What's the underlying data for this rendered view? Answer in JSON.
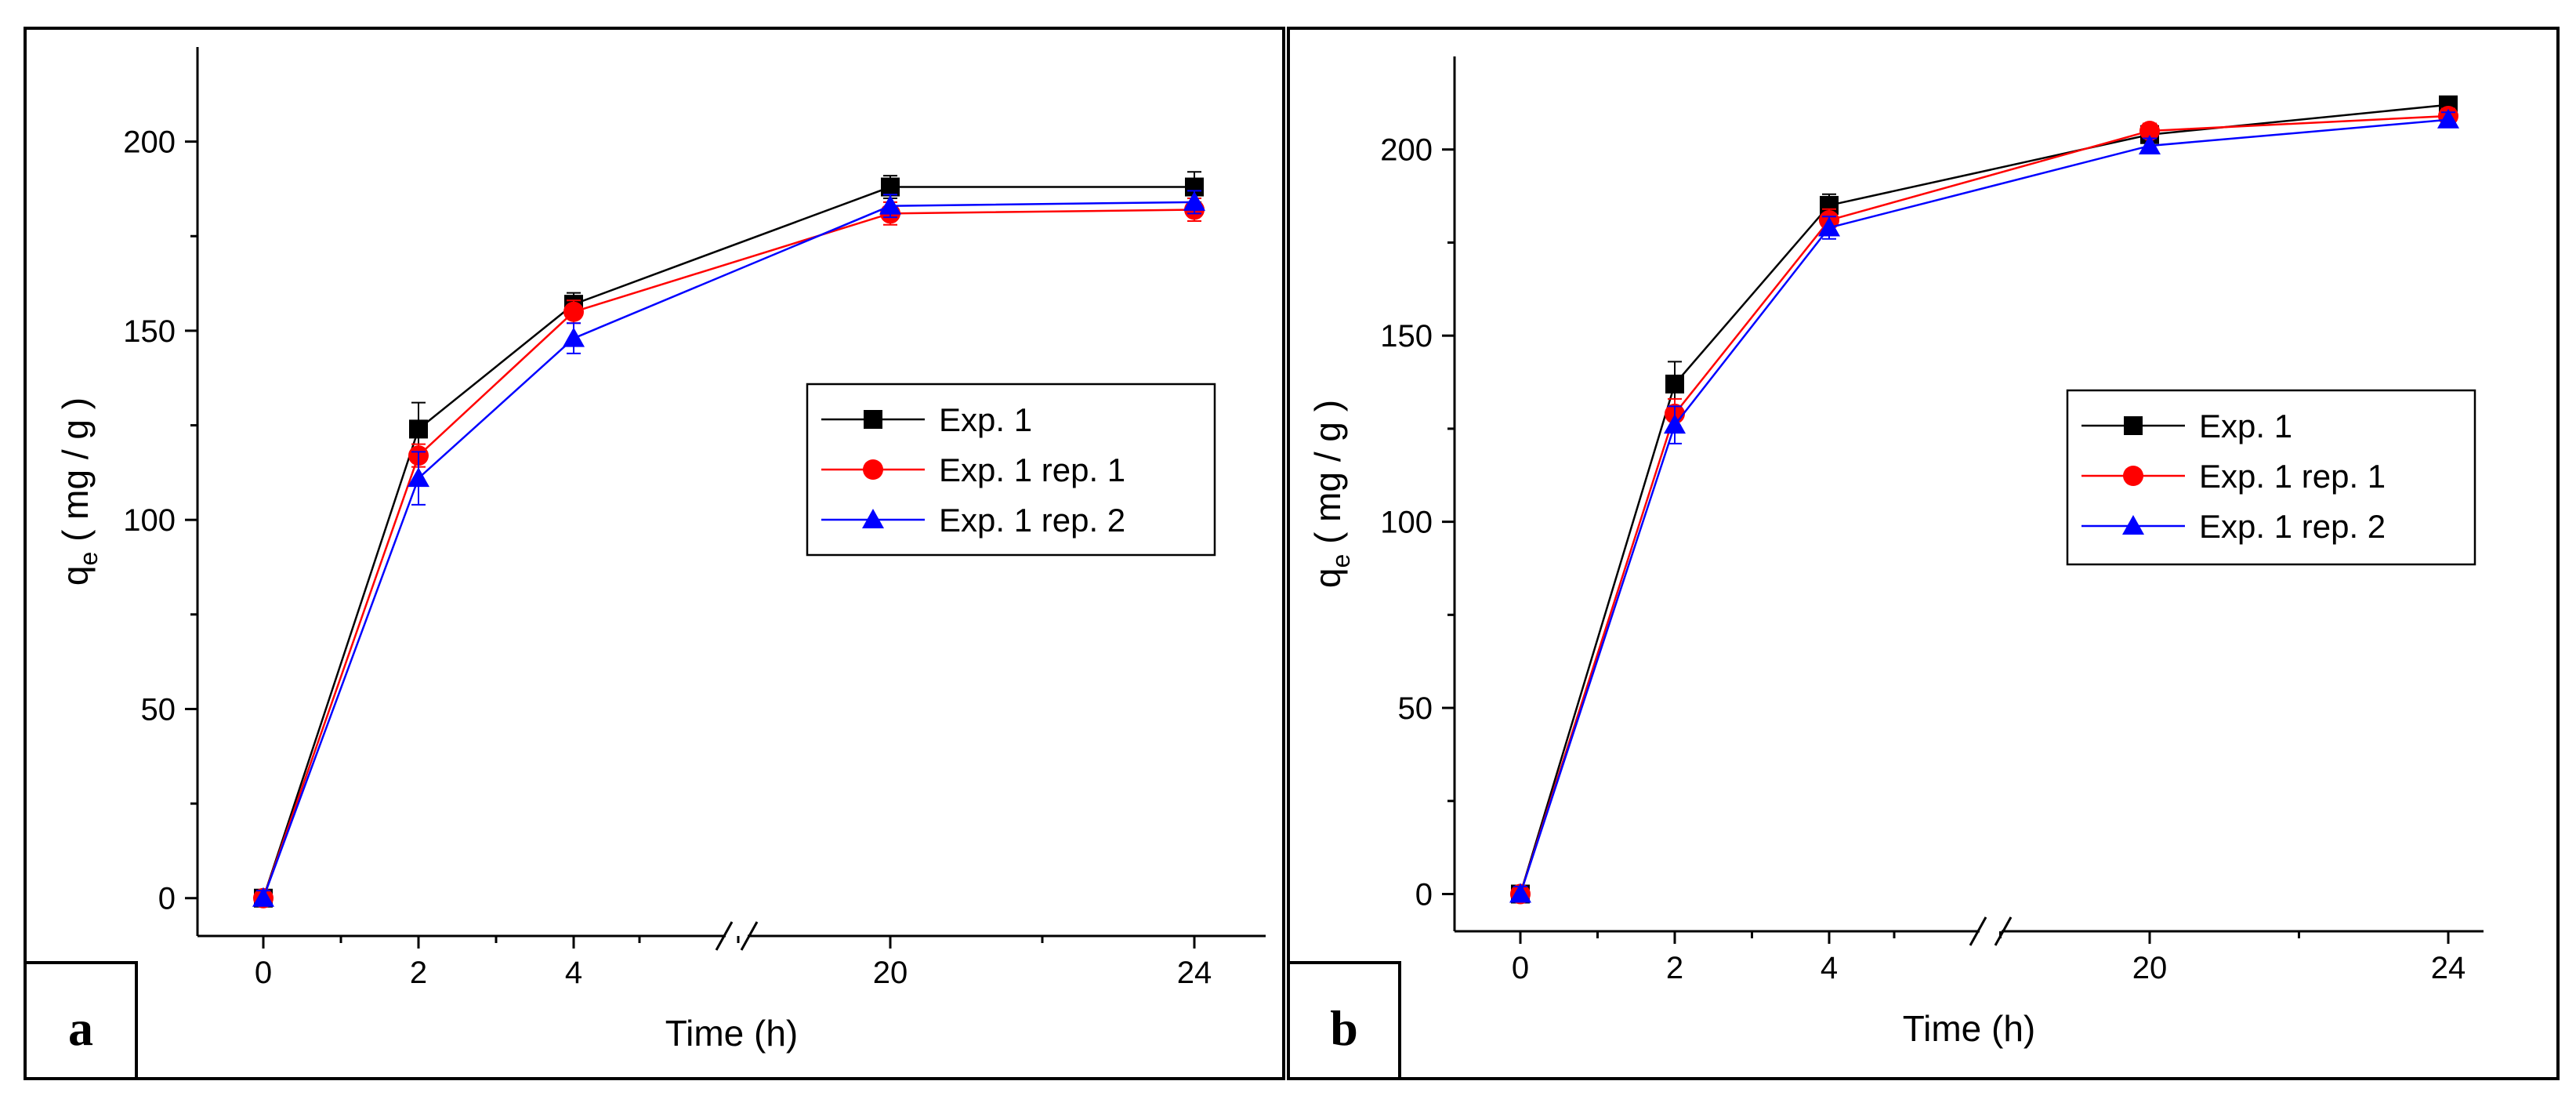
{
  "colors": {
    "exp1": "#000000",
    "rep1": "#ff0000",
    "rep2": "#0000ff",
    "frame": "#000000"
  },
  "chart_data": [
    {
      "type": "line",
      "panel_label": "a",
      "xlabel": "Time (h)",
      "ylabel_main": "q",
      "ylabel_sub": "e",
      "ylabel_rest": " ( mg / g )",
      "x": [
        0,
        2,
        4,
        20,
        24
      ],
      "x_ticks": [
        "0",
        "2",
        "4",
        "20",
        "24"
      ],
      "x_axis_break": "between 4 and 20",
      "y_ticks": [
        "0",
        "50",
        "100",
        "150",
        "200"
      ],
      "ylim": [
        -10,
        225
      ],
      "grid": false,
      "legend_position": "right-middle",
      "series": [
        {
          "name": "Exp. 1",
          "marker": "square",
          "values": [
            0,
            124,
            157,
            188,
            188
          ],
          "errors": [
            2,
            7,
            3,
            3,
            4
          ]
        },
        {
          "name": "Exp. 1 rep. 1",
          "marker": "circle",
          "values": [
            0,
            117,
            155,
            181,
            182
          ],
          "errors": [
            2,
            3,
            3,
            3,
            3
          ]
        },
        {
          "name": "Exp. 1 rep. 2",
          "marker": "triangle",
          "values": [
            0,
            111,
            148,
            183,
            184
          ],
          "errors": [
            2,
            7,
            4,
            3,
            3
          ]
        }
      ]
    },
    {
      "type": "line",
      "panel_label": "b",
      "xlabel": "Time (h)",
      "ylabel_main": "q",
      "ylabel_sub": "e",
      "ylabel_rest": " ( mg / g )",
      "x": [
        0,
        2,
        4,
        20,
        24
      ],
      "x_ticks": [
        "0",
        "2",
        "4",
        "20",
        "24"
      ],
      "x_axis_break": "between 4 and 20",
      "y_ticks": [
        "0",
        "50",
        "100",
        "150",
        "200"
      ],
      "ylim": [
        -10,
        225
      ],
      "grid": false,
      "legend_position": "right-middle",
      "series": [
        {
          "name": "Exp. 1",
          "marker": "square",
          "values": [
            0,
            137,
            185,
            204,
            212
          ],
          "errors": [
            2,
            6,
            3,
            2,
            2
          ]
        },
        {
          "name": "Exp. 1 rep. 1",
          "marker": "circle",
          "values": [
            0,
            129,
            181,
            205,
            209
          ],
          "errors": [
            2,
            4,
            3,
            2,
            2
          ]
        },
        {
          "name": "Exp. 1 rep. 2",
          "marker": "triangle",
          "values": [
            0,
            126,
            179,
            201,
            208
          ],
          "errors": [
            2,
            5,
            3,
            2,
            2
          ]
        }
      ]
    }
  ]
}
